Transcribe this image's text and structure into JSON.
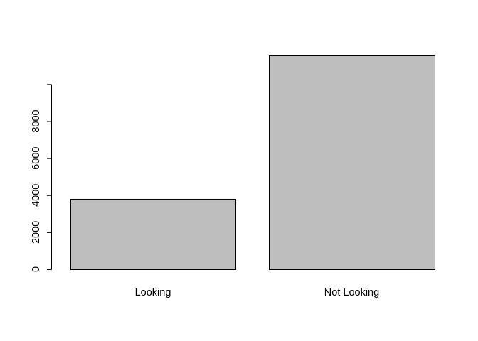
{
  "chart_data": {
    "type": "bar",
    "title": "",
    "xlabel": "",
    "ylabel": "",
    "categories": [
      "Looking",
      "Not Looking"
    ],
    "values": [
      3800,
      11550
    ],
    "ylim": [
      0,
      11550
    ],
    "yticks": [
      0,
      2000,
      4000,
      6000,
      8000
    ],
    "ytick_labels": [
      "0",
      "2000",
      "4000",
      "6000",
      "8000"
    ],
    "grid": false,
    "legend": "none",
    "colors": {
      "bar_fill": "#bebebe",
      "bar_stroke": "#000000",
      "axis": "#000000"
    }
  }
}
